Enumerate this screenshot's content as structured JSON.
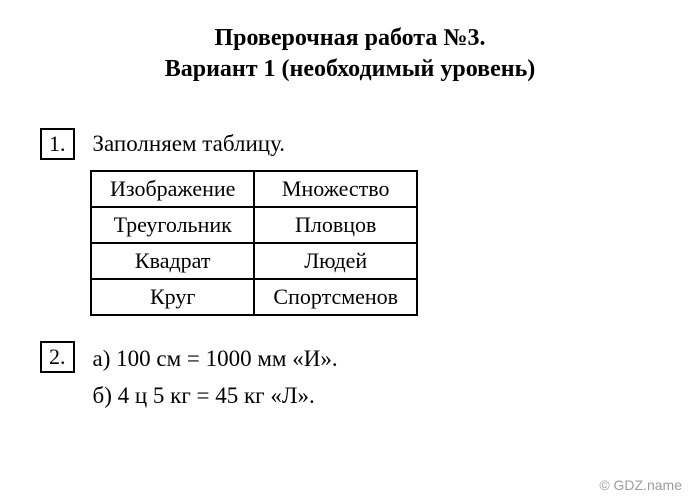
{
  "title": {
    "line1": "Проверочная работа №3.",
    "line2": "Вариант 1 (необходимый уровень)"
  },
  "task1": {
    "number": "1.",
    "instruction": "Заполняем таблицу.",
    "table": {
      "columns": [
        "Изображение",
        "Множество"
      ],
      "rows": [
        [
          "Треугольник",
          "Пловцов"
        ],
        [
          "Квадрат",
          "Людей"
        ],
        [
          "Круг",
          "Спортсменов"
        ]
      ],
      "border_color": "#000000",
      "cell_fontsize": 22
    }
  },
  "task2": {
    "number": "2.",
    "line_a": "а) 100 см = 1000 мм «И».",
    "line_b": "б) 4 ц 5 кг = 45 кг «Л»."
  },
  "watermark": "©  GDZ.name",
  "colors": {
    "background": "#ffffff",
    "text": "#000000",
    "watermark": "#9c9c9c"
  }
}
